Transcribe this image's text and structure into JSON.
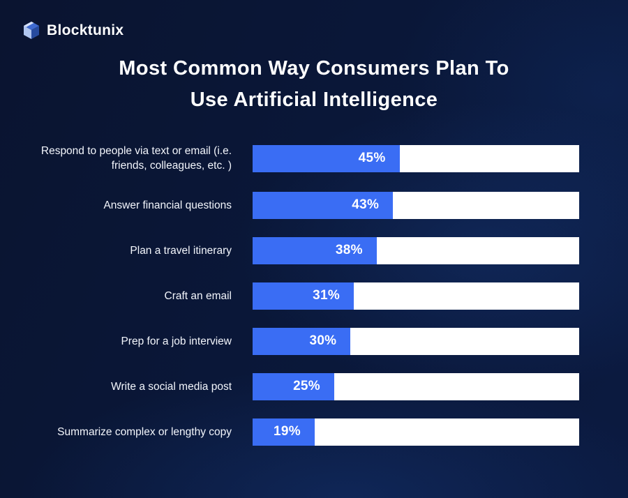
{
  "brand": {
    "name": "Blocktunix",
    "logo_icon": "cube-icon"
  },
  "title": {
    "line1": "Most Common Way Consumers Plan To",
    "line2": "Use Artificial Intelligence"
  },
  "colors": {
    "background": "#0a1738",
    "bar_fill": "#3a6df4",
    "bar_track": "#ffffff",
    "text": "#ffffff",
    "logo_cube_top": "#3f6ad0",
    "logo_cube_left": "#b0c6f0",
    "logo_cube_right": "#274b9e"
  },
  "chart_data": {
    "type": "bar",
    "orientation": "horizontal",
    "title": "Most Common Way Consumers Plan To Use Artificial Intelligence",
    "xlabel": "",
    "ylabel": "",
    "xlim": [
      0,
      100
    ],
    "grid": false,
    "legend": false,
    "categories": [
      "Respond to people via text or email (i.e. friends, colleagues, etc. )",
      "Answer financial questions",
      "Plan a travel itinerary",
      "Craft an email",
      "Prep for a job interview",
      "Write a social media post",
      "Summarize complex or lengthy copy"
    ],
    "values": [
      45,
      43,
      38,
      31,
      30,
      25,
      19
    ],
    "value_labels": [
      "45%",
      "43%",
      "38%",
      "31%",
      "30%",
      "25%",
      "19%"
    ]
  }
}
